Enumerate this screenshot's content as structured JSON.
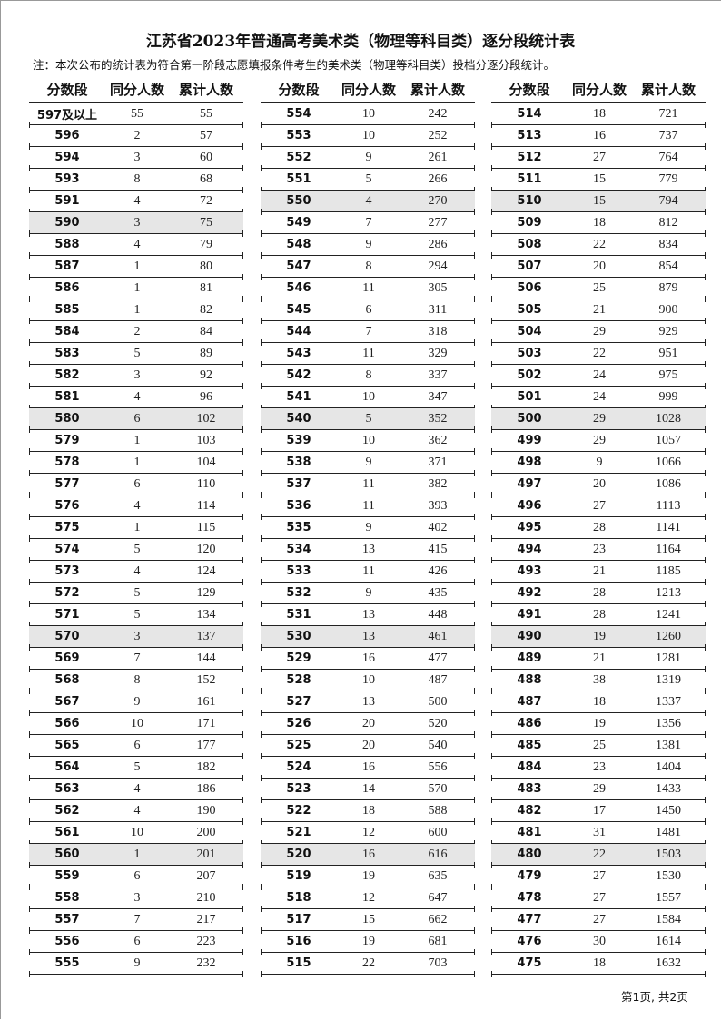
{
  "title": "江苏省2023年普通高考美术类（物理等科目类）逐分段统计表",
  "note": "注：本次公布的统计表为符合第一阶段志愿填报条件考生的美术类（物理等科目类）投档分逐分段统计。",
  "headers": [
    "分数段",
    "同分人数",
    "累计人数"
  ],
  "highlight_color": "#e6e6e6",
  "columns": [
    [
      [
        "597及以上",
        55,
        55
      ],
      [
        "596",
        2,
        57
      ],
      [
        "594",
        3,
        60
      ],
      [
        "593",
        8,
        68
      ],
      [
        "591",
        4,
        72
      ],
      [
        "590",
        3,
        75
      ],
      [
        "588",
        4,
        79
      ],
      [
        "587",
        1,
        80
      ],
      [
        "586",
        1,
        81
      ],
      [
        "585",
        1,
        82
      ],
      [
        "584",
        2,
        84
      ],
      [
        "583",
        5,
        89
      ],
      [
        "582",
        3,
        92
      ],
      [
        "581",
        4,
        96
      ],
      [
        "580",
        6,
        102
      ],
      [
        "579",
        1,
        103
      ],
      [
        "578",
        1,
        104
      ],
      [
        "577",
        6,
        110
      ],
      [
        "576",
        4,
        114
      ],
      [
        "575",
        1,
        115
      ],
      [
        "574",
        5,
        120
      ],
      [
        "573",
        4,
        124
      ],
      [
        "572",
        5,
        129
      ],
      [
        "571",
        5,
        134
      ],
      [
        "570",
        3,
        137
      ],
      [
        "569",
        7,
        144
      ],
      [
        "568",
        8,
        152
      ],
      [
        "567",
        9,
        161
      ],
      [
        "566",
        10,
        171
      ],
      [
        "565",
        6,
        177
      ],
      [
        "564",
        5,
        182
      ],
      [
        "563",
        4,
        186
      ],
      [
        "562",
        4,
        190
      ],
      [
        "561",
        10,
        200
      ],
      [
        "560",
        1,
        201
      ],
      [
        "559",
        6,
        207
      ],
      [
        "558",
        3,
        210
      ],
      [
        "557",
        7,
        217
      ],
      [
        "556",
        6,
        223
      ],
      [
        "555",
        9,
        232
      ]
    ],
    [
      [
        "554",
        10,
        242
      ],
      [
        "553",
        10,
        252
      ],
      [
        "552",
        9,
        261
      ],
      [
        "551",
        5,
        266
      ],
      [
        "550",
        4,
        270
      ],
      [
        "549",
        7,
        277
      ],
      [
        "548",
        9,
        286
      ],
      [
        "547",
        8,
        294
      ],
      [
        "546",
        11,
        305
      ],
      [
        "545",
        6,
        311
      ],
      [
        "544",
        7,
        318
      ],
      [
        "543",
        11,
        329
      ],
      [
        "542",
        8,
        337
      ],
      [
        "541",
        10,
        347
      ],
      [
        "540",
        5,
        352
      ],
      [
        "539",
        10,
        362
      ],
      [
        "538",
        9,
        371
      ],
      [
        "537",
        11,
        382
      ],
      [
        "536",
        11,
        393
      ],
      [
        "535",
        9,
        402
      ],
      [
        "534",
        13,
        415
      ],
      [
        "533",
        11,
        426
      ],
      [
        "532",
        9,
        435
      ],
      [
        "531",
        13,
        448
      ],
      [
        "530",
        13,
        461
      ],
      [
        "529",
        16,
        477
      ],
      [
        "528",
        10,
        487
      ],
      [
        "527",
        13,
        500
      ],
      [
        "526",
        20,
        520
      ],
      [
        "525",
        20,
        540
      ],
      [
        "524",
        16,
        556
      ],
      [
        "523",
        14,
        570
      ],
      [
        "522",
        18,
        588
      ],
      [
        "521",
        12,
        600
      ],
      [
        "520",
        16,
        616
      ],
      [
        "519",
        19,
        635
      ],
      [
        "518",
        12,
        647
      ],
      [
        "517",
        15,
        662
      ],
      [
        "516",
        19,
        681
      ],
      [
        "515",
        22,
        703
      ]
    ],
    [
      [
        "514",
        18,
        721
      ],
      [
        "513",
        16,
        737
      ],
      [
        "512",
        27,
        764
      ],
      [
        "511",
        15,
        779
      ],
      [
        "510",
        15,
        794
      ],
      [
        "509",
        18,
        812
      ],
      [
        "508",
        22,
        834
      ],
      [
        "507",
        20,
        854
      ],
      [
        "506",
        25,
        879
      ],
      [
        "505",
        21,
        900
      ],
      [
        "504",
        29,
        929
      ],
      [
        "503",
        22,
        951
      ],
      [
        "502",
        24,
        975
      ],
      [
        "501",
        24,
        999
      ],
      [
        "500",
        29,
        1028
      ],
      [
        "499",
        29,
        1057
      ],
      [
        "498",
        9,
        1066
      ],
      [
        "497",
        20,
        1086
      ],
      [
        "496",
        27,
        1113
      ],
      [
        "495",
        28,
        1141
      ],
      [
        "494",
        23,
        1164
      ],
      [
        "493",
        21,
        1185
      ],
      [
        "492",
        28,
        1213
      ],
      [
        "491",
        28,
        1241
      ],
      [
        "490",
        19,
        1260
      ],
      [
        "489",
        21,
        1281
      ],
      [
        "488",
        38,
        1319
      ],
      [
        "487",
        18,
        1337
      ],
      [
        "486",
        19,
        1356
      ],
      [
        "485",
        25,
        1381
      ],
      [
        "484",
        23,
        1404
      ],
      [
        "483",
        29,
        1433
      ],
      [
        "482",
        17,
        1450
      ],
      [
        "481",
        31,
        1481
      ],
      [
        "480",
        22,
        1503
      ],
      [
        "479",
        27,
        1530
      ],
      [
        "478",
        27,
        1557
      ],
      [
        "477",
        27,
        1584
      ],
      [
        "476",
        30,
        1614
      ],
      [
        "475",
        18,
        1632
      ]
    ]
  ],
  "footer": "第1页, 共2页"
}
